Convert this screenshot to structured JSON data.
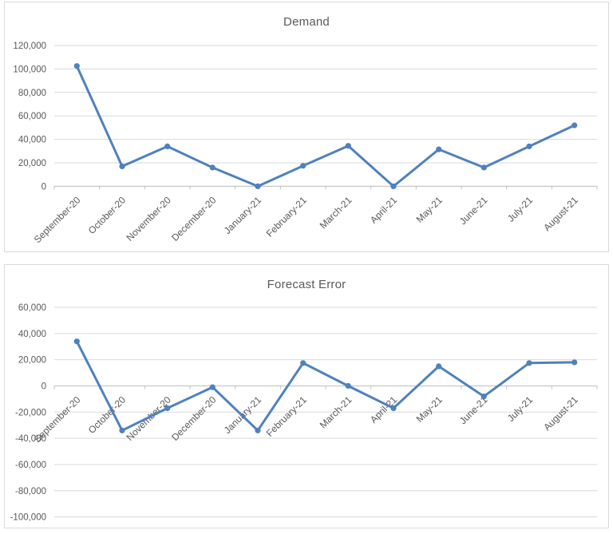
{
  "page": {
    "background": "#ffffff",
    "border_color": "#d9d9d9"
  },
  "chart_data": [
    {
      "type": "line",
      "title": "Demand",
      "categories": [
        "September-20",
        "October-20",
        "November-20",
        "December-20",
        "January-21",
        "February-21",
        "March-21",
        "April-21",
        "May-21",
        "June-21",
        "July-21",
        "August-21"
      ],
      "values": [
        102500,
        17000,
        34000,
        16000,
        0,
        17500,
        34500,
        0,
        31500,
        16000,
        34000,
        52000
      ],
      "xlabel": "",
      "ylabel": "",
      "ylim": [
        0,
        120000
      ],
      "ytick_values": [
        0,
        20000,
        40000,
        60000,
        80000,
        100000,
        120000
      ],
      "ytick_labels": [
        "0",
        "20,000",
        "40,000",
        "60,000",
        "80,000",
        "100,000",
        "120,000"
      ],
      "grid": true,
      "legend": "none",
      "marker": "circle",
      "line_color": "#4f81bd",
      "grid_color": "#d9d9d9",
      "axis_color": "#bfbfbf",
      "label_color": "#595959",
      "title_color": "#595959"
    },
    {
      "type": "line",
      "title": "Forecast Error",
      "categories": [
        "September-20",
        "October-20",
        "November-20",
        "December-20",
        "January-21",
        "February-21",
        "March-21",
        "April-21",
        "May-21",
        "June-21",
        "July-21",
        "August-21"
      ],
      "values": [
        34000,
        -34000,
        -17000,
        -1000,
        -34000,
        17500,
        0,
        -17000,
        15000,
        -8000,
        17500,
        18000
      ],
      "xlabel": "",
      "ylabel": "",
      "ylim": [
        -100000,
        60000
      ],
      "ytick_values": [
        -100000,
        -80000,
        -60000,
        -40000,
        -20000,
        0,
        20000,
        40000,
        60000
      ],
      "ytick_labels": [
        "-100,000",
        "-80,000",
        "-60,000",
        "-40,000",
        "-20,000",
        "0",
        "20,000",
        "40,000",
        "60,000"
      ],
      "grid": true,
      "legend": "none",
      "marker": "circle",
      "line_color": "#4f81bd",
      "grid_color": "#d9d9d9",
      "axis_color": "#bfbfbf",
      "label_color": "#595959",
      "title_color": "#595959"
    }
  ]
}
